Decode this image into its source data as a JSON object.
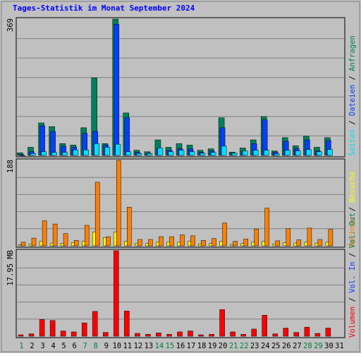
{
  "title": "Tages-Statistik im Monat September 2024",
  "colors": {
    "background": "#c0c0c0",
    "frame": "#808080",
    "title": "#0000ff",
    "hits": "#00805c",
    "files": "#0040ff",
    "pages": "#00e0ff",
    "visits": "#ffff00",
    "sites": "#ff8000",
    "volume": "#ff0000",
    "weekday": "#008040",
    "weekend": "#00805c",
    "text": "#000000"
  },
  "right_labels": {
    "top": [
      "Anfragen",
      "/",
      "Dateien",
      "/",
      "Seiten"
    ],
    "middle": [
      "Besuche",
      "/",
      "Rechner"
    ],
    "bottom": [
      "Volumen",
      "/",
      "Vol. In",
      "/",
      "Vol. Out"
    ]
  },
  "chart_data": [
    {
      "type": "bar",
      "panel": "top",
      "y_max_label": "369",
      "ylim": [
        0,
        369
      ],
      "categories": [
        "1",
        "2",
        "3",
        "4",
        "5",
        "6",
        "7",
        "8",
        "9",
        "10",
        "11",
        "12",
        "13",
        "14",
        "15",
        "16",
        "17",
        "18",
        "19",
        "20",
        "21",
        "22",
        "23",
        "24",
        "25",
        "26",
        "27",
        "28",
        "29",
        "30"
      ],
      "weekend_days": [
        "1",
        "7",
        "8",
        "14",
        "15",
        "21",
        "22",
        "28",
        "29"
      ],
      "series": [
        {
          "name": "Anfragen",
          "color_key": "hits",
          "values": [
            7,
            22,
            88,
            78,
            32,
            28,
            75,
            210,
            32,
            369,
            115,
            14,
            10,
            42,
            22,
            32,
            28,
            14,
            18,
            102,
            9,
            20,
            42,
            105,
            12,
            48,
            26,
            52,
            22,
            48
          ]
        },
        {
          "name": "Dateien",
          "color_key": "files",
          "values": [
            2,
            10,
            80,
            65,
            25,
            22,
            60,
            65,
            28,
            355,
            102,
            8,
            6,
            18,
            14,
            18,
            18,
            8,
            12,
            75,
            6,
            10,
            32,
            96,
            8,
            38,
            18,
            42,
            12,
            40
          ]
        },
        {
          "name": "Seiten",
          "color_key": "pages",
          "values": [
            0,
            5,
            10,
            8,
            8,
            15,
            15,
            32,
            22,
            30,
            10,
            5,
            5,
            20,
            10,
            14,
            10,
            6,
            8,
            25,
            6,
            12,
            14,
            14,
            4,
            14,
            12,
            16,
            10,
            16
          ]
        }
      ]
    },
    {
      "type": "bar",
      "panel": "middle",
      "y_max_label": "188",
      "ylim": [
        0,
        188
      ],
      "categories": [
        "1",
        "2",
        "3",
        "4",
        "5",
        "6",
        "7",
        "8",
        "9",
        "10",
        "11",
        "12",
        "13",
        "14",
        "15",
        "16",
        "17",
        "18",
        "19",
        "20",
        "21",
        "22",
        "23",
        "24",
        "25",
        "26",
        "27",
        "28",
        "29",
        "30"
      ],
      "series": [
        {
          "name": "Besuche",
          "color_key": "visits",
          "values": [
            2,
            4,
            10,
            6,
            5,
            7,
            10,
            30,
            18,
            30,
            10,
            5,
            5,
            8,
            8,
            8,
            10,
            4,
            5,
            10,
            3,
            5,
            8,
            10,
            4,
            7,
            6,
            8,
            6,
            8
          ]
        },
        {
          "name": "Rechner",
          "color_key": "sites",
          "values": [
            8,
            17,
            55,
            48,
            27,
            12,
            45,
            140,
            20,
            188,
            85,
            14,
            14,
            20,
            20,
            24,
            22,
            12,
            16,
            50,
            10,
            15,
            37,
            83,
            11,
            38,
            13,
            39,
            14,
            36
          ]
        }
      ]
    },
    {
      "type": "bar",
      "panel": "bottom",
      "y_max_label": "17.95 MB",
      "ylim": [
        0,
        17.95
      ],
      "categories": [
        "1",
        "2",
        "3",
        "4",
        "5",
        "6",
        "7",
        "8",
        "9",
        "10",
        "11",
        "12",
        "13",
        "14",
        "15",
        "16",
        "17",
        "18",
        "19",
        "20",
        "21",
        "22",
        "23",
        "24",
        "25",
        "26",
        "27",
        "28",
        "29",
        "30"
      ],
      "series": [
        {
          "name": "Volumen",
          "color_key": "volume",
          "values": [
            0.3,
            0.5,
            3.5,
            3.3,
            1.1,
            0.9,
            2.8,
            5.2,
            0.8,
            17.95,
            5.3,
            0.6,
            0.4,
            0.7,
            0.4,
            0.9,
            1.1,
            0.3,
            0.4,
            5.6,
            0.9,
            0.4,
            1.5,
            4.4,
            0.5,
            1.7,
            0.8,
            1.9,
            0.6,
            1.7
          ]
        }
      ]
    }
  ],
  "x_axis_labels": [
    "1",
    "2",
    "3",
    "4",
    "5",
    "6",
    "7",
    "8",
    "9",
    "10",
    "11",
    "12",
    "13",
    "14",
    "15",
    "16",
    "17",
    "18",
    "19",
    "20",
    "21",
    "22",
    "23",
    "24",
    "25",
    "26",
    "27",
    "28",
    "29",
    "30",
    "31"
  ]
}
